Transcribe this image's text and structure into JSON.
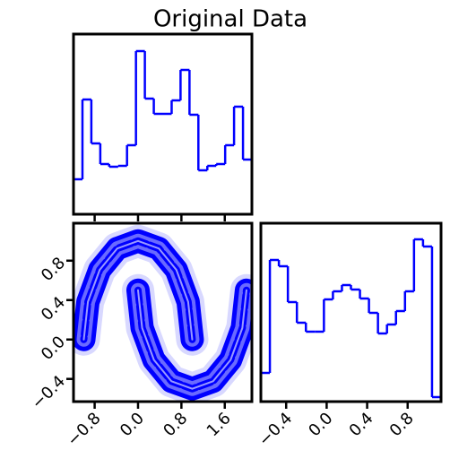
{
  "title": "Original Data",
  "chart_data": [
    {
      "type": "histogram",
      "color": "#0000ff",
      "bins": [
        -1.19,
        -1.025,
        -0.861,
        -0.696,
        -0.532,
        -0.367,
        -0.203,
        -0.038,
        0.126,
        0.291,
        0.455,
        0.62,
        0.784,
        0.949,
        1.113,
        1.278,
        1.442,
        1.607,
        1.771,
        1.936,
        2.1
      ],
      "counts": [
        39,
        128,
        79,
        56,
        53,
        54,
        77,
        182,
        129,
        112,
        112,
        127,
        161,
        111,
        49,
        54,
        56,
        77,
        120,
        61
      ],
      "xlim": [
        -1.19,
        2.1
      ],
      "ylim": [
        0,
        201
      ],
      "xticks": [
        -0.8,
        0,
        0.8,
        1.6
      ]
    },
    {
      "type": "contour",
      "color": "#0000ff",
      "series": [
        {
          "x": [
            1,
            0.924,
            0.707,
            0.383,
            0,
            -0.383,
            -0.707,
            -0.924,
            -1
          ],
          "y": [
            0,
            0.383,
            0.707,
            0.924,
            1,
            0.924,
            0.707,
            0.383,
            0
          ]
        },
        {
          "x": [
            0,
            0.076,
            0.293,
            0.617,
            1,
            1.383,
            1.707,
            1.924,
            2
          ],
          "y": [
            0.5,
            0.117,
            -0.207,
            -0.424,
            -0.5,
            -0.424,
            -0.207,
            0.117,
            0.5
          ]
        }
      ],
      "xlim": [
        -1.19,
        2.1
      ],
      "ylim": [
        -0.63,
        1.18
      ],
      "xticks": [
        {
          "value": -0.8,
          "label": "−0.8"
        },
        {
          "value": 0,
          "label": "0.0"
        },
        0.8,
        1.6
      ],
      "yticks": [
        {
          "value": -0.4,
          "label": "−0.4"
        },
        {
          "value": 0,
          "label": "0.0"
        },
        0.4,
        0.8
      ]
    },
    {
      "type": "histogram",
      "color": "#0000ff",
      "bins": [
        -0.65,
        -0.561,
        -0.472,
        -0.383,
        -0.294,
        -0.205,
        -0.116,
        -0.027,
        0.062,
        0.151,
        0.24,
        0.329,
        0.418,
        0.507,
        0.596,
        0.685,
        0.774,
        0.863,
        0.952,
        1.041,
        1.13
      ],
      "counts": [
        32,
        158,
        151,
        111,
        88,
        78,
        78,
        114,
        123,
        130,
        125,
        115,
        99,
        76,
        86,
        101,
        123,
        181,
        173,
        5
      ],
      "xlim": [
        -0.65,
        1.13
      ],
      "ylim": [
        0,
        199
      ],
      "xticks": [
        {
          "value": -0.4,
          "label": "−0.4"
        },
        {
          "value": 0,
          "label": "0.0"
        },
        0.4,
        0.8
      ]
    }
  ]
}
